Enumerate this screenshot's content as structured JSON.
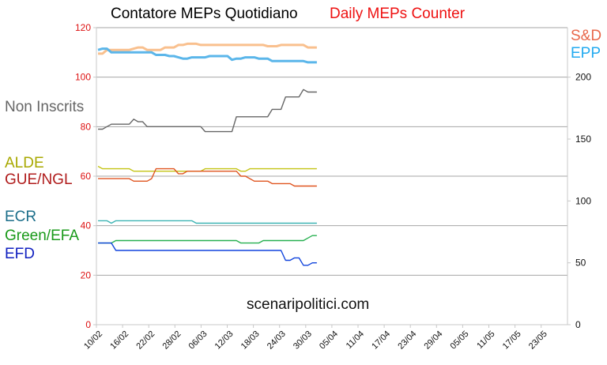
{
  "title_it": "Contatore MEPs Quotidiano",
  "title_en": "Daily MEPs Counter",
  "watermark": "scenaripolitici.com",
  "chart_data": {
    "type": "line",
    "x_ticks": [
      "10/02",
      "16/02",
      "22/02",
      "28/02",
      "06/03",
      "12/03",
      "18/03",
      "24/03",
      "30/03",
      "05/04",
      "11/04",
      "17/04",
      "23/04",
      "29/04",
      "05/05",
      "11/05",
      "17/05",
      "23/05"
    ],
    "ylim_left": [
      0,
      120
    ],
    "yticks_left": [
      0,
      20,
      40,
      60,
      80,
      100,
      120
    ],
    "ylim_right": [
      0,
      240
    ],
    "yticks_right": [
      0,
      50,
      100,
      150,
      200
    ],
    "grid": "horizontal",
    "series": [
      {
        "name": "S&D",
        "axis": "right",
        "color": "#f9c08e",
        "labelColor": "#e8674a",
        "values": [
          219,
          219,
          222,
          222,
          222,
          222,
          222,
          222,
          223,
          224,
          224,
          222,
          222,
          222,
          222,
          224,
          224,
          224,
          226,
          226,
          227,
          227,
          227,
          226,
          226,
          226,
          226,
          226,
          226,
          226,
          226,
          226,
          226,
          226,
          226,
          226,
          226,
          226,
          225,
          225,
          225,
          226,
          226,
          226,
          226,
          226,
          226,
          224,
          224,
          224
        ]
      },
      {
        "name": "EPP",
        "axis": "right",
        "color": "#5bb6ea",
        "labelColor": "#22aaf0",
        "values": [
          222,
          223,
          223,
          220,
          220,
          220,
          220,
          220,
          220,
          220,
          220,
          220,
          220,
          218,
          218,
          218,
          217,
          217,
          216,
          215,
          215,
          216,
          216,
          216,
          216,
          217,
          217,
          217,
          217,
          217,
          214,
          215,
          215,
          216,
          216,
          216,
          215,
          215,
          215,
          213,
          213,
          213,
          213,
          213,
          213,
          213,
          213,
          212,
          212,
          212
        ]
      },
      {
        "name": "Non Inscrits",
        "axis": "left",
        "color": "#666666",
        "labelColor": "#666666",
        "values": [
          79,
          79,
          80,
          81,
          81,
          81,
          81,
          81,
          83,
          82,
          82,
          80,
          80,
          80,
          80,
          80,
          80,
          80,
          80,
          80,
          80,
          80,
          80,
          80,
          78,
          78,
          78,
          78,
          78,
          78,
          78,
          84,
          84,
          84,
          84,
          84,
          84,
          84,
          84,
          87,
          87,
          87,
          92,
          92,
          92,
          92,
          95,
          94,
          94,
          94
        ]
      },
      {
        "name": "ALDE",
        "axis": "left",
        "color": "#c4c415",
        "labelColor": "#a8a800",
        "values": [
          64,
          63,
          63,
          63,
          63,
          63,
          63,
          63,
          62,
          62,
          62,
          62,
          62,
          62,
          62,
          62,
          62,
          62,
          62,
          62,
          62,
          62,
          62,
          62,
          63,
          63,
          63,
          63,
          63,
          63,
          63,
          63,
          62,
          62,
          63,
          63,
          63,
          63,
          63,
          63,
          63,
          63,
          63,
          63,
          63,
          63,
          63,
          63,
          63,
          63
        ]
      },
      {
        "name": "GUE/NGL",
        "axis": "left",
        "color": "#e05520",
        "labelColor": "#b01c1c",
        "values": [
          59,
          59,
          59,
          59,
          59,
          59,
          59,
          59,
          58,
          58,
          58,
          58,
          59,
          63,
          63,
          63,
          63,
          63,
          61,
          61,
          62,
          62,
          62,
          62,
          62,
          62,
          62,
          62,
          62,
          62,
          62,
          62,
          60,
          60,
          59,
          58,
          58,
          58,
          58,
          57,
          57,
          57,
          57,
          57,
          56,
          56,
          56,
          56,
          56,
          56
        ]
      },
      {
        "name": "ECR",
        "axis": "left",
        "color": "#3bb3b3",
        "labelColor": "#1b6e8a",
        "values": [
          42,
          42,
          42,
          41,
          42,
          42,
          42,
          42,
          42,
          42,
          42,
          42,
          42,
          42,
          42,
          42,
          42,
          42,
          42,
          42,
          42,
          42,
          41,
          41,
          41,
          41,
          41,
          41,
          41,
          41,
          41,
          41,
          41,
          41,
          41,
          41,
          41,
          41,
          41,
          41,
          41,
          41,
          41,
          41,
          41,
          41,
          41,
          41,
          41,
          41
        ]
      },
      {
        "name": "Green/EFA",
        "axis": "left",
        "color": "#27b050",
        "labelColor": "#1a9a1a",
        "values": [
          33,
          33,
          33,
          33,
          34,
          34,
          34,
          34,
          34,
          34,
          34,
          34,
          34,
          34,
          34,
          34,
          34,
          34,
          34,
          34,
          34,
          34,
          34,
          34,
          34,
          34,
          34,
          34,
          34,
          34,
          34,
          34,
          33,
          33,
          33,
          33,
          33,
          34,
          34,
          34,
          34,
          34,
          34,
          34,
          34,
          34,
          34,
          35,
          36,
          36
        ]
      },
      {
        "name": "EFD",
        "axis": "left",
        "color": "#1044dd",
        "labelColor": "#1020c0",
        "values": [
          33,
          33,
          33,
          33,
          30,
          30,
          30,
          30,
          30,
          30,
          30,
          30,
          30,
          30,
          30,
          30,
          30,
          30,
          30,
          30,
          30,
          30,
          30,
          30,
          30,
          30,
          30,
          30,
          30,
          30,
          30,
          30,
          30,
          30,
          30,
          30,
          30,
          30,
          30,
          30,
          30,
          30,
          26,
          26,
          27,
          27,
          24,
          24,
          25,
          25
        ]
      }
    ]
  }
}
